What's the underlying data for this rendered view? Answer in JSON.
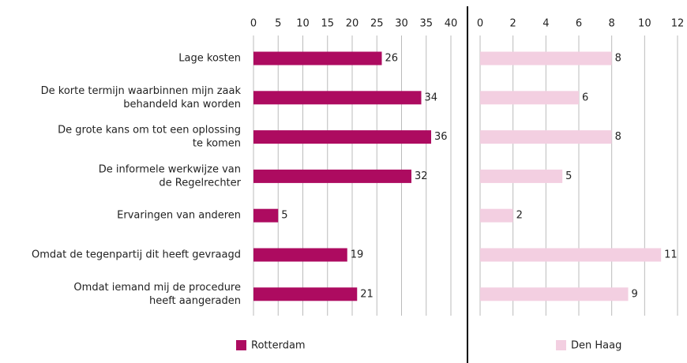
{
  "chart_data": {
    "type": "bar",
    "orientation": "horizontal",
    "categories": [
      [
        "Lage kosten"
      ],
      [
        "De korte termijn waarbinnen mijn zaak",
        "behandeld kan worden"
      ],
      [
        "De grote kans om tot een oplossing",
        "te komen"
      ],
      [
        "De informele werkwijze van",
        "de Regelrechter"
      ],
      [
        "Ervaringen van anderen"
      ],
      [
        "Omdat de tegenpartij dit heeft gevraagd"
      ],
      [
        "Omdat iemand mij de procedure",
        "heeft aangeraden"
      ]
    ],
    "series": [
      {
        "name": "Rotterdam",
        "color": "#ad0b60",
        "values": [
          26,
          34,
          36,
          32,
          5,
          19,
          21
        ],
        "xlim": [
          0,
          40
        ],
        "xticks": [
          0,
          5,
          10,
          15,
          20,
          25,
          30,
          35,
          40
        ]
      },
      {
        "name": "Den Haag",
        "color": "#f3cfe1",
        "values": [
          8,
          6,
          8,
          5,
          2,
          11,
          9
        ],
        "xlim": [
          0,
          12
        ],
        "xticks": [
          0,
          2,
          4,
          6,
          8,
          10,
          12
        ]
      }
    ],
    "grid": true
  }
}
